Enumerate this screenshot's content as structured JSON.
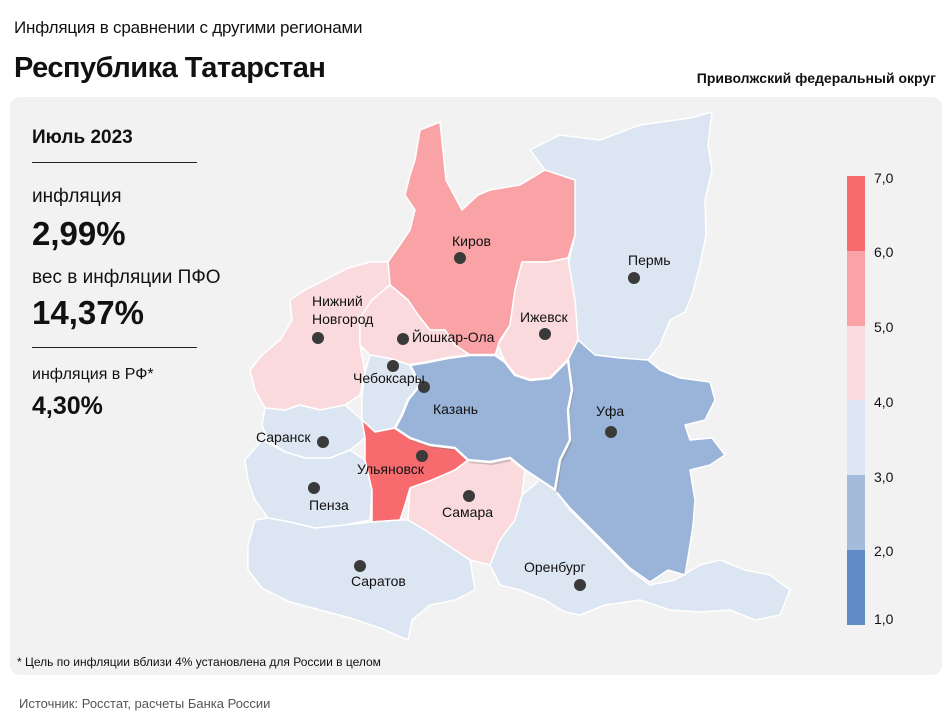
{
  "header": {
    "subtitle": "Инфляция в сравнении с другими регионами",
    "title": "Республика Татарстан",
    "district": "Приволжский федеральный округ"
  },
  "summary": {
    "period": "Июль 2023",
    "inflation_label": "инфляция",
    "inflation_value": "2,99%",
    "weight_label": "вес в инфляции ПФО",
    "weight_value": "14,37%",
    "rf_label": "инфляция в РФ*",
    "rf_value": "4,30%"
  },
  "footnote": "* Цель по инфляции вблизи 4% установлена для России в целом",
  "source": "Источник: Росстат, расчеты Банка России",
  "legend": {
    "ticks": [
      "7,0",
      "6,0",
      "5,0",
      "4,0",
      "3,0",
      "2,0",
      "1,0"
    ],
    "colors": [
      "#f76b6f",
      "#f9a3a6",
      "#fadadd",
      "#dce5f2",
      "#a5bbdb",
      "#5f8cc7"
    ]
  },
  "map": {
    "highlight_color": "#9ab3d8",
    "cities": [
      {
        "name": "Киров",
        "bin_color": "#f9a3a6"
      },
      {
        "name": "Пермь",
        "bin_color": "#dce5f2"
      },
      {
        "name": "Нижний Новгород",
        "line1": "Нижний",
        "line2": "Новгород",
        "bin_color": "#fadadd"
      },
      {
        "name": "Йошкар-Ола",
        "bin_color": "#fadadd"
      },
      {
        "name": "Ижевск",
        "bin_color": "#fadadd"
      },
      {
        "name": "Чебоксары",
        "bin_color": "#dce5f2"
      },
      {
        "name": "Казань",
        "bin_color": "#9ab3d8"
      },
      {
        "name": "Уфа",
        "bin_color": "#9ab3d8"
      },
      {
        "name": "Саранск",
        "bin_color": "#dce5f2"
      },
      {
        "name": "Ульяновск",
        "bin_color": "#f76b6f"
      },
      {
        "name": "Пенза",
        "bin_color": "#dce5f2"
      },
      {
        "name": "Самара",
        "bin_color": "#fadadd"
      },
      {
        "name": "Саратов",
        "bin_color": "#dce5f2"
      },
      {
        "name": "Оренбург",
        "bin_color": "#dce5f2"
      }
    ]
  }
}
